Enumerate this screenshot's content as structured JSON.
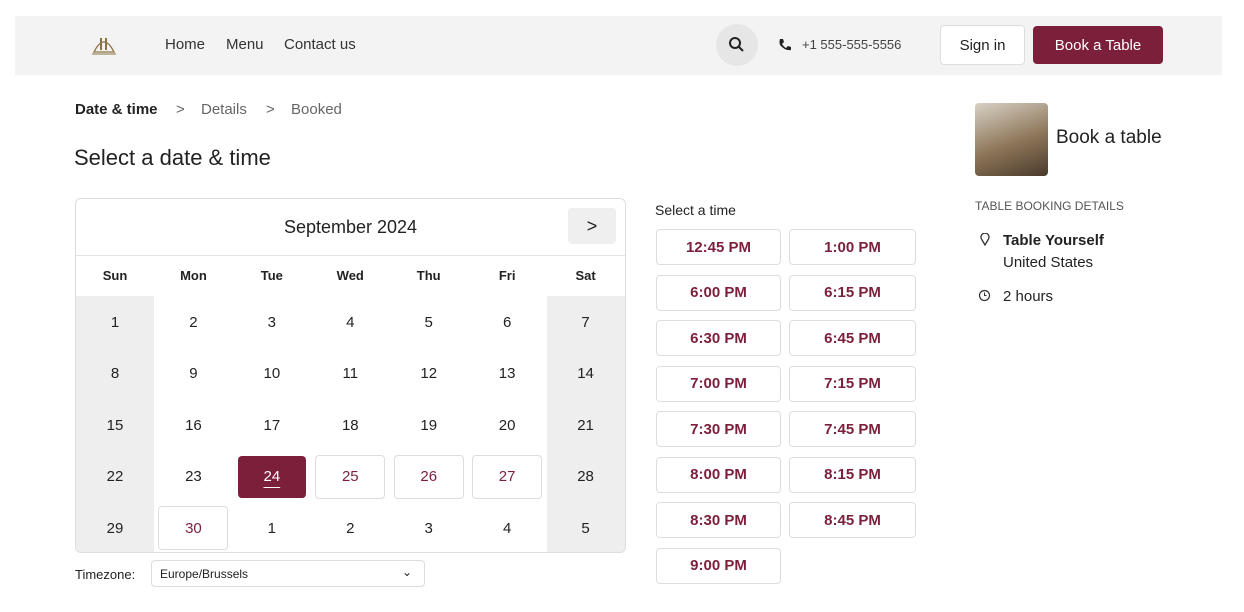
{
  "nav": {
    "links": [
      "Home",
      "Menu",
      "Contact us"
    ],
    "phone": "+1 555-555-5556",
    "sign_in": "Sign in",
    "book": "Book a Table"
  },
  "breadcrumb": [
    "Date & time",
    "Details",
    "Booked"
  ],
  "heading": "Select a date & time",
  "calendar": {
    "month": "September 2024",
    "weekdays": [
      "Sun",
      "Mon",
      "Tue",
      "Wed",
      "Thu",
      "Fri",
      "Sat"
    ],
    "weeks": [
      [
        1,
        2,
        3,
        4,
        5,
        6,
        7
      ],
      [
        8,
        9,
        10,
        11,
        12,
        13,
        14
      ],
      [
        15,
        16,
        17,
        18,
        19,
        20,
        21
      ],
      [
        22,
        23,
        24,
        25,
        26,
        27,
        28
      ],
      [
        29,
        30,
        1,
        2,
        3,
        4,
        5
      ]
    ]
  },
  "timezone": {
    "label": "Timezone:",
    "value": "Europe/Brussels"
  },
  "times": {
    "label": "Select a time",
    "slots": [
      "12:45 PM",
      "1:00 PM",
      "6:00 PM",
      "6:15 PM",
      "6:30 PM",
      "6:45 PM",
      "7:00 PM",
      "7:15 PM",
      "7:30 PM",
      "7:45 PM",
      "8:00 PM",
      "8:15 PM",
      "8:30 PM",
      "8:45 PM",
      "9:00 PM"
    ]
  },
  "sidebar": {
    "title": "Book a table",
    "section": "TABLE BOOKING DETAILS",
    "name": "Table Yourself",
    "location": "United States",
    "duration": "2 hours"
  }
}
